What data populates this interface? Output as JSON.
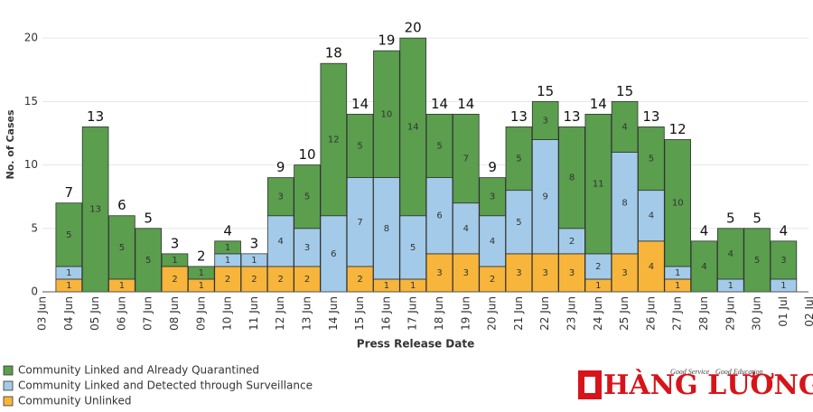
{
  "chart_data": {
    "type": "stacked_bar",
    "y_axis_label": "No. of Cases",
    "x_axis_label": "Press Release Date",
    "categories": [
      "03 Jun",
      "04 Jun",
      "05 Jun",
      "06 Jun",
      "07 Jun",
      "08 Jun",
      "09 Jun",
      "10 Jun",
      "11 Jun",
      "12 Jun",
      "13 Jun",
      "14 Jun",
      "15 Jun",
      "16 Jun",
      "17 Jun",
      "18 Jun",
      "19 Jun",
      "20 Jun",
      "21 Jun",
      "22 Jun",
      "23 Jun",
      "24 Jun",
      "25 Jun",
      "26 Jun",
      "27 Jun",
      "28 Jun",
      "29 Jun",
      "30 Jun",
      "01 Jul",
      "02 Jul"
    ],
    "series": [
      {
        "name": "Community Unlinked",
        "color": "#f7b53b",
        "values": [
          null,
          1,
          null,
          1,
          null,
          2,
          1,
          2,
          2,
          2,
          2,
          null,
          2,
          1,
          1,
          3,
          3,
          2,
          3,
          3,
          3,
          1,
          3,
          4,
          1,
          null,
          null,
          null,
          null,
          null
        ]
      },
      {
        "name": "Community Linked and Detected through Surveillance",
        "color": "#a3cbe9",
        "values": [
          null,
          1,
          null,
          null,
          null,
          null,
          null,
          1,
          1,
          4,
          3,
          6,
          7,
          8,
          5,
          6,
          4,
          4,
          5,
          9,
          2,
          2,
          8,
          4,
          1,
          null,
          1,
          null,
          1,
          null
        ]
      },
      {
        "name": "Community Linked and Already Quarantined",
        "color": "#5a9e4e",
        "values": [
          null,
          5,
          13,
          5,
          5,
          1,
          1,
          1,
          null,
          3,
          5,
          12,
          5,
          10,
          14,
          5,
          7,
          3,
          5,
          3,
          8,
          11,
          4,
          5,
          10,
          4,
          4,
          5,
          3,
          null
        ]
      }
    ],
    "totals": [
      null,
      7,
      13,
      6,
      5,
      3,
      2,
      4,
      3,
      9,
      10,
      18,
      14,
      19,
      20,
      14,
      14,
      9,
      13,
      15,
      13,
      14,
      15,
      13,
      12,
      4,
      5,
      5,
      4,
      null
    ],
    "ylim": [
      0,
      23
    ],
    "yticks": [
      0,
      5,
      10,
      15,
      20
    ],
    "grid": true,
    "legend": "bottom-left"
  },
  "logo": {
    "name": "HÀNG LƯƠNG",
    "tagline_1": "Good Service",
    "tagline_2": "Good Education"
  }
}
